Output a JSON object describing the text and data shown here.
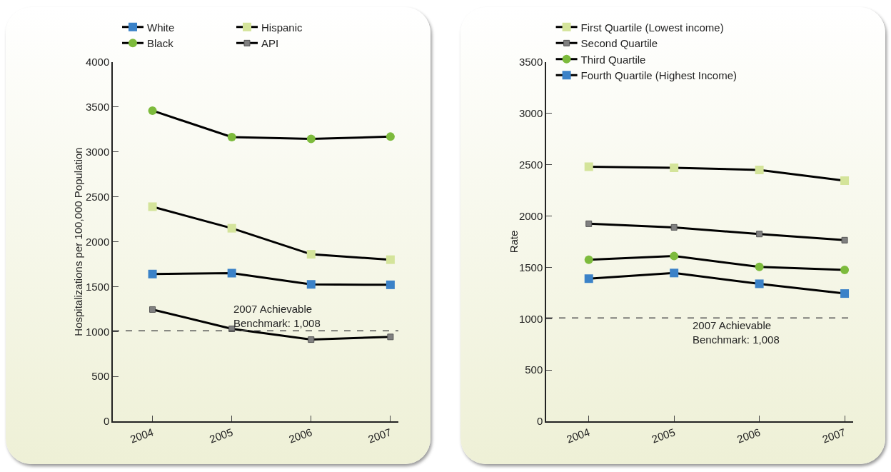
{
  "chart_data": [
    {
      "type": "line",
      "ylabel": "Hospitalizations per 100,000 Population",
      "categories": [
        "2004",
        "2005",
        "2006",
        "2007"
      ],
      "ylim": [
        0,
        4000
      ],
      "yticks": [
        0,
        500,
        1000,
        1500,
        2000,
        2500,
        3000,
        3500,
        4000
      ],
      "grid": false,
      "legend": "top",
      "line_style": "solid",
      "series": [
        {
          "name": "White",
          "color": "#3b82c8",
          "marker": "square",
          "values": [
            1640,
            1650,
            1525,
            1520
          ]
        },
        {
          "name": "Hispanic",
          "color": "#d4e49a",
          "marker": "square",
          "values": [
            2390,
            2150,
            1860,
            1800
          ]
        },
        {
          "name": "Black",
          "color": "#7dbb3c",
          "marker": "circle",
          "values": [
            3460,
            3165,
            3145,
            3170
          ]
        },
        {
          "name": "API",
          "color": "#808080",
          "marker": "square",
          "values": [
            1245,
            1030,
            910,
            940
          ]
        }
      ],
      "ref_lines": [
        {
          "axis": "y",
          "value": 1008,
          "label": "2007 Achievable\nBenchmark: 1,008",
          "color": "#555555",
          "line_style": "dashed"
        }
      ]
    },
    {
      "type": "line",
      "ylabel": "Rate",
      "categories": [
        "2004",
        "2005",
        "2006",
        "2007"
      ],
      "ylim": [
        0,
        3500
      ],
      "yticks": [
        0,
        500,
        1000,
        1500,
        2000,
        2500,
        3000,
        3500
      ],
      "grid": false,
      "legend": "top left",
      "line_style": "solid",
      "series": [
        {
          "name": "First Quartile (Lowest income)",
          "color": "#d4e49a",
          "marker": "square",
          "values": [
            2480,
            2470,
            2450,
            2345
          ]
        },
        {
          "name": "Second Quartile",
          "color": "#808080",
          "marker": "square",
          "values": [
            1925,
            1890,
            1825,
            1765
          ]
        },
        {
          "name": "Third Quartile",
          "color": "#7dbb3c",
          "marker": "circle",
          "values": [
            1575,
            1610,
            1505,
            1475
          ]
        },
        {
          "name": "Fourth Quartile (Highest Income)",
          "color": "#3b82c8",
          "marker": "square",
          "values": [
            1390,
            1445,
            1340,
            1245
          ]
        }
      ],
      "ref_lines": [
        {
          "axis": "y",
          "value": 1008,
          "label": "2007 Achievable\nBenchmark: 1,008",
          "color": "#555555",
          "line_style": "dashed"
        }
      ]
    }
  ]
}
